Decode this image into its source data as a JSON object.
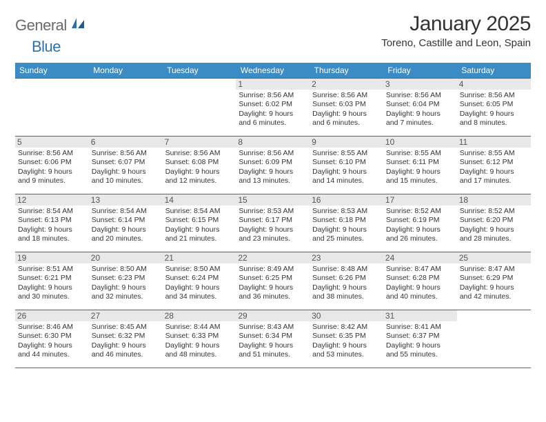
{
  "logo": {
    "text1": "General",
    "text2": "Blue"
  },
  "title": "January 2025",
  "location": "Toreno, Castille and Leon, Spain",
  "colors": {
    "header_bg": "#3b8bc5",
    "header_text": "#ffffff",
    "rule": "#2f6fa8",
    "daynum_bg": "#e8e8e8",
    "daynum_text": "#555555",
    "body_text": "#333333",
    "logo_gray": "#6a6a6a",
    "logo_blue": "#2f6fa8",
    "page_bg": "#ffffff"
  },
  "day_headers": [
    "Sunday",
    "Monday",
    "Tuesday",
    "Wednesday",
    "Thursday",
    "Friday",
    "Saturday"
  ],
  "weeks": [
    [
      {
        "n": "",
        "sunrise": "",
        "sunset": "",
        "daylight": "",
        "empty": true
      },
      {
        "n": "",
        "sunrise": "",
        "sunset": "",
        "daylight": "",
        "empty": true
      },
      {
        "n": "",
        "sunrise": "",
        "sunset": "",
        "daylight": "",
        "empty": true
      },
      {
        "n": "1",
        "sunrise": "Sunrise: 8:56 AM",
        "sunset": "Sunset: 6:02 PM",
        "daylight": "Daylight: 9 hours and 6 minutes."
      },
      {
        "n": "2",
        "sunrise": "Sunrise: 8:56 AM",
        "sunset": "Sunset: 6:03 PM",
        "daylight": "Daylight: 9 hours and 6 minutes."
      },
      {
        "n": "3",
        "sunrise": "Sunrise: 8:56 AM",
        "sunset": "Sunset: 6:04 PM",
        "daylight": "Daylight: 9 hours and 7 minutes."
      },
      {
        "n": "4",
        "sunrise": "Sunrise: 8:56 AM",
        "sunset": "Sunset: 6:05 PM",
        "daylight": "Daylight: 9 hours and 8 minutes."
      }
    ],
    [
      {
        "n": "5",
        "sunrise": "Sunrise: 8:56 AM",
        "sunset": "Sunset: 6:06 PM",
        "daylight": "Daylight: 9 hours and 9 minutes."
      },
      {
        "n": "6",
        "sunrise": "Sunrise: 8:56 AM",
        "sunset": "Sunset: 6:07 PM",
        "daylight": "Daylight: 9 hours and 10 minutes."
      },
      {
        "n": "7",
        "sunrise": "Sunrise: 8:56 AM",
        "sunset": "Sunset: 6:08 PM",
        "daylight": "Daylight: 9 hours and 12 minutes."
      },
      {
        "n": "8",
        "sunrise": "Sunrise: 8:56 AM",
        "sunset": "Sunset: 6:09 PM",
        "daylight": "Daylight: 9 hours and 13 minutes."
      },
      {
        "n": "9",
        "sunrise": "Sunrise: 8:55 AM",
        "sunset": "Sunset: 6:10 PM",
        "daylight": "Daylight: 9 hours and 14 minutes."
      },
      {
        "n": "10",
        "sunrise": "Sunrise: 8:55 AM",
        "sunset": "Sunset: 6:11 PM",
        "daylight": "Daylight: 9 hours and 15 minutes."
      },
      {
        "n": "11",
        "sunrise": "Sunrise: 8:55 AM",
        "sunset": "Sunset: 6:12 PM",
        "daylight": "Daylight: 9 hours and 17 minutes."
      }
    ],
    [
      {
        "n": "12",
        "sunrise": "Sunrise: 8:54 AM",
        "sunset": "Sunset: 6:13 PM",
        "daylight": "Daylight: 9 hours and 18 minutes."
      },
      {
        "n": "13",
        "sunrise": "Sunrise: 8:54 AM",
        "sunset": "Sunset: 6:14 PM",
        "daylight": "Daylight: 9 hours and 20 minutes."
      },
      {
        "n": "14",
        "sunrise": "Sunrise: 8:54 AM",
        "sunset": "Sunset: 6:15 PM",
        "daylight": "Daylight: 9 hours and 21 minutes."
      },
      {
        "n": "15",
        "sunrise": "Sunrise: 8:53 AM",
        "sunset": "Sunset: 6:17 PM",
        "daylight": "Daylight: 9 hours and 23 minutes."
      },
      {
        "n": "16",
        "sunrise": "Sunrise: 8:53 AM",
        "sunset": "Sunset: 6:18 PM",
        "daylight": "Daylight: 9 hours and 25 minutes."
      },
      {
        "n": "17",
        "sunrise": "Sunrise: 8:52 AM",
        "sunset": "Sunset: 6:19 PM",
        "daylight": "Daylight: 9 hours and 26 minutes."
      },
      {
        "n": "18",
        "sunrise": "Sunrise: 8:52 AM",
        "sunset": "Sunset: 6:20 PM",
        "daylight": "Daylight: 9 hours and 28 minutes."
      }
    ],
    [
      {
        "n": "19",
        "sunrise": "Sunrise: 8:51 AM",
        "sunset": "Sunset: 6:21 PM",
        "daylight": "Daylight: 9 hours and 30 minutes."
      },
      {
        "n": "20",
        "sunrise": "Sunrise: 8:50 AM",
        "sunset": "Sunset: 6:23 PM",
        "daylight": "Daylight: 9 hours and 32 minutes."
      },
      {
        "n": "21",
        "sunrise": "Sunrise: 8:50 AM",
        "sunset": "Sunset: 6:24 PM",
        "daylight": "Daylight: 9 hours and 34 minutes."
      },
      {
        "n": "22",
        "sunrise": "Sunrise: 8:49 AM",
        "sunset": "Sunset: 6:25 PM",
        "daylight": "Daylight: 9 hours and 36 minutes."
      },
      {
        "n": "23",
        "sunrise": "Sunrise: 8:48 AM",
        "sunset": "Sunset: 6:26 PM",
        "daylight": "Daylight: 9 hours and 38 minutes."
      },
      {
        "n": "24",
        "sunrise": "Sunrise: 8:47 AM",
        "sunset": "Sunset: 6:28 PM",
        "daylight": "Daylight: 9 hours and 40 minutes."
      },
      {
        "n": "25",
        "sunrise": "Sunrise: 8:47 AM",
        "sunset": "Sunset: 6:29 PM",
        "daylight": "Daylight: 9 hours and 42 minutes."
      }
    ],
    [
      {
        "n": "26",
        "sunrise": "Sunrise: 8:46 AM",
        "sunset": "Sunset: 6:30 PM",
        "daylight": "Daylight: 9 hours and 44 minutes."
      },
      {
        "n": "27",
        "sunrise": "Sunrise: 8:45 AM",
        "sunset": "Sunset: 6:32 PM",
        "daylight": "Daylight: 9 hours and 46 minutes."
      },
      {
        "n": "28",
        "sunrise": "Sunrise: 8:44 AM",
        "sunset": "Sunset: 6:33 PM",
        "daylight": "Daylight: 9 hours and 48 minutes."
      },
      {
        "n": "29",
        "sunrise": "Sunrise: 8:43 AM",
        "sunset": "Sunset: 6:34 PM",
        "daylight": "Daylight: 9 hours and 51 minutes."
      },
      {
        "n": "30",
        "sunrise": "Sunrise: 8:42 AM",
        "sunset": "Sunset: 6:35 PM",
        "daylight": "Daylight: 9 hours and 53 minutes."
      },
      {
        "n": "31",
        "sunrise": "Sunrise: 8:41 AM",
        "sunset": "Sunset: 6:37 PM",
        "daylight": "Daylight: 9 hours and 55 minutes."
      },
      {
        "n": "",
        "sunrise": "",
        "sunset": "",
        "daylight": "",
        "empty": true
      }
    ]
  ]
}
